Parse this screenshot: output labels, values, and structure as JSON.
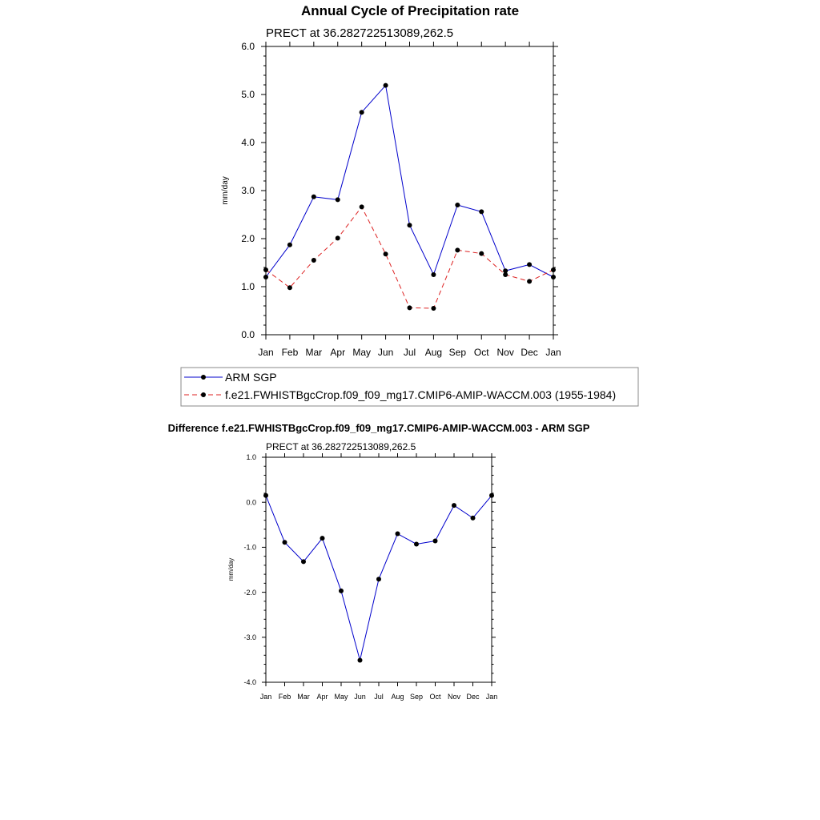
{
  "figure_title": "Annual Cycle of Precipitation rate",
  "chart_data": [
    {
      "type": "line",
      "title": "Annual Cycle of Precipitation rate",
      "subtitle": "PRECT at 36.282722513089,262.5",
      "xlabel": "",
      "ylabel": "mm/day",
      "ylim": [
        0,
        6
      ],
      "yticks": [
        0,
        1,
        2,
        3,
        4,
        5,
        6
      ],
      "ytick_labels": [
        "0.0",
        "1.0",
        "2.0",
        "3.0",
        "4.0",
        "5.0",
        "6.0"
      ],
      "categories": [
        "Jan",
        "Feb",
        "Mar",
        "Apr",
        "May",
        "Jun",
        "Jul",
        "Aug",
        "Sep",
        "Oct",
        "Nov",
        "Dec",
        "Jan"
      ],
      "grid": false,
      "legend_position": "bottom",
      "series": [
        {
          "name": "ARM SGP",
          "color": "#0000cc",
          "dash": "solid",
          "values": [
            1.2,
            1.87,
            2.87,
            2.81,
            4.63,
            5.19,
            2.28,
            1.25,
            2.7,
            2.56,
            1.33,
            1.46,
            1.2
          ]
        },
        {
          "name": "f.e21.FWHISTBgcCrop.f09_f09_mg17.CMIP6-AMIP-WACCM.003 (1955-1984)",
          "color": "#dd2222",
          "dash": "dashed",
          "values": [
            1.35,
            0.98,
            1.55,
            2.01,
            2.66,
            1.68,
            0.56,
            0.55,
            1.76,
            1.69,
            1.25,
            1.11,
            1.35
          ]
        }
      ]
    },
    {
      "type": "line",
      "title": "Difference f.e21.FWHISTBgcCrop.f09_f09_mg17.CMIP6-AMIP-WACCM.003 - ARM SGP",
      "subtitle": "PRECT at 36.282722513089,262.5",
      "xlabel": "",
      "ylabel": "mm/day",
      "ylim": [
        -4,
        1
      ],
      "yticks": [
        -4,
        -3,
        -2,
        -1,
        0,
        1
      ],
      "ytick_labels": [
        "-4.0",
        "-3.0",
        "-2.0",
        "-1.0",
        "0.0",
        "1.0"
      ],
      "categories": [
        "Jan",
        "Feb",
        "Mar",
        "Apr",
        "May",
        "Jun",
        "Jul",
        "Aug",
        "Sep",
        "Oct",
        "Nov",
        "Dec",
        "Jan"
      ],
      "grid": false,
      "series": [
        {
          "name": "Difference",
          "color": "#0000cc",
          "dash": "solid",
          "values": [
            0.15,
            -0.89,
            -1.32,
            -0.8,
            -1.97,
            -3.51,
            -1.71,
            -0.7,
            -0.93,
            -0.86,
            -0.07,
            -0.35,
            0.15
          ]
        }
      ]
    }
  ]
}
